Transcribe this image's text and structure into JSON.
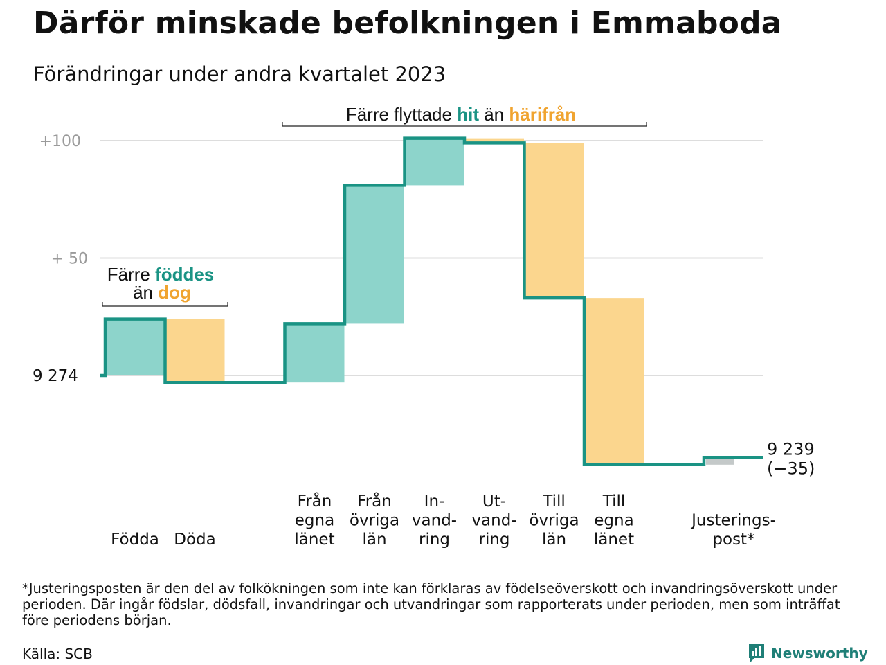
{
  "title": "Därför minskade befolkningen i Emmaboda",
  "subtitle": "Förändringar under andra kvartalet 2023",
  "chart_data": {
    "type": "waterfall",
    "start_value": 9274,
    "start_label": "9  274",
    "end_label_value": "9 239",
    "end_label_change": "(−35)",
    "ylim": [
      -40,
      105
    ],
    "yticks": [
      {
        "value": 100,
        "label": "+100"
      },
      {
        "value": 50,
        "label": "+  50"
      }
    ],
    "grid": true,
    "colors": {
      "increase": "#8dd4cb",
      "decrease": "#fbd68e",
      "adjustment": "#c4c9c9",
      "line": "#1a9384",
      "grid": "#dddddd",
      "teal_text": "#1a9384",
      "orange_text": "#f0a430"
    },
    "steps": [
      {
        "label": "Födda",
        "lines": [
          "Födda"
        ],
        "value": 24,
        "kind": "increase"
      },
      {
        "label": "Döda",
        "lines": [
          "Döda"
        ],
        "value": -27,
        "kind": "decrease"
      },
      {
        "label": "Från egna länet",
        "lines": [
          "Från",
          "egna",
          "länet"
        ],
        "value": 25,
        "kind": "increase"
      },
      {
        "label": "Från övriga län",
        "lines": [
          "Från",
          "övriga",
          "län"
        ],
        "value": 59,
        "kind": "increase"
      },
      {
        "label": "Invandring",
        "lines": [
          "In-",
          "vand-",
          "ring"
        ],
        "value": 20,
        "kind": "increase"
      },
      {
        "label": "Utvandring",
        "lines": [
          "Ut-",
          "vand-",
          "ring"
        ],
        "value": -2,
        "kind": "decrease"
      },
      {
        "label": "Till övriga län",
        "lines": [
          "Till",
          "övriga",
          "län"
        ],
        "value": -66,
        "kind": "decrease"
      },
      {
        "label": "Till egna länet",
        "lines": [
          "Till",
          "egna",
          "länet"
        ],
        "value": -71,
        "kind": "decrease"
      },
      {
        "label": "Justeringspost*",
        "lines": [
          "Justerings-",
          "post*"
        ],
        "value": 3,
        "kind": "adjustment"
      }
    ],
    "annotations": [
      {
        "pre": "Färre ",
        "hl1": "föddes",
        "mid": "än ",
        "hl2": "dog"
      },
      {
        "pre": "Färre flyttade ",
        "hl1": "hit",
        "mid": " än ",
        "hl2": "härifrån"
      }
    ]
  },
  "footnote": "*Justeringsposten är den del av folkökningen som inte kan förklaras av födelseöverskott och invandringsöverskott under perioden. Där ingår födslar, dödsfall, invandringar och utvandringar som rapporterats under perioden, men som inträffat före periodens början.",
  "source": "Källa: SCB",
  "logo": {
    "text": "Newsworthy",
    "icon": "bar-chart-logo-icon"
  }
}
